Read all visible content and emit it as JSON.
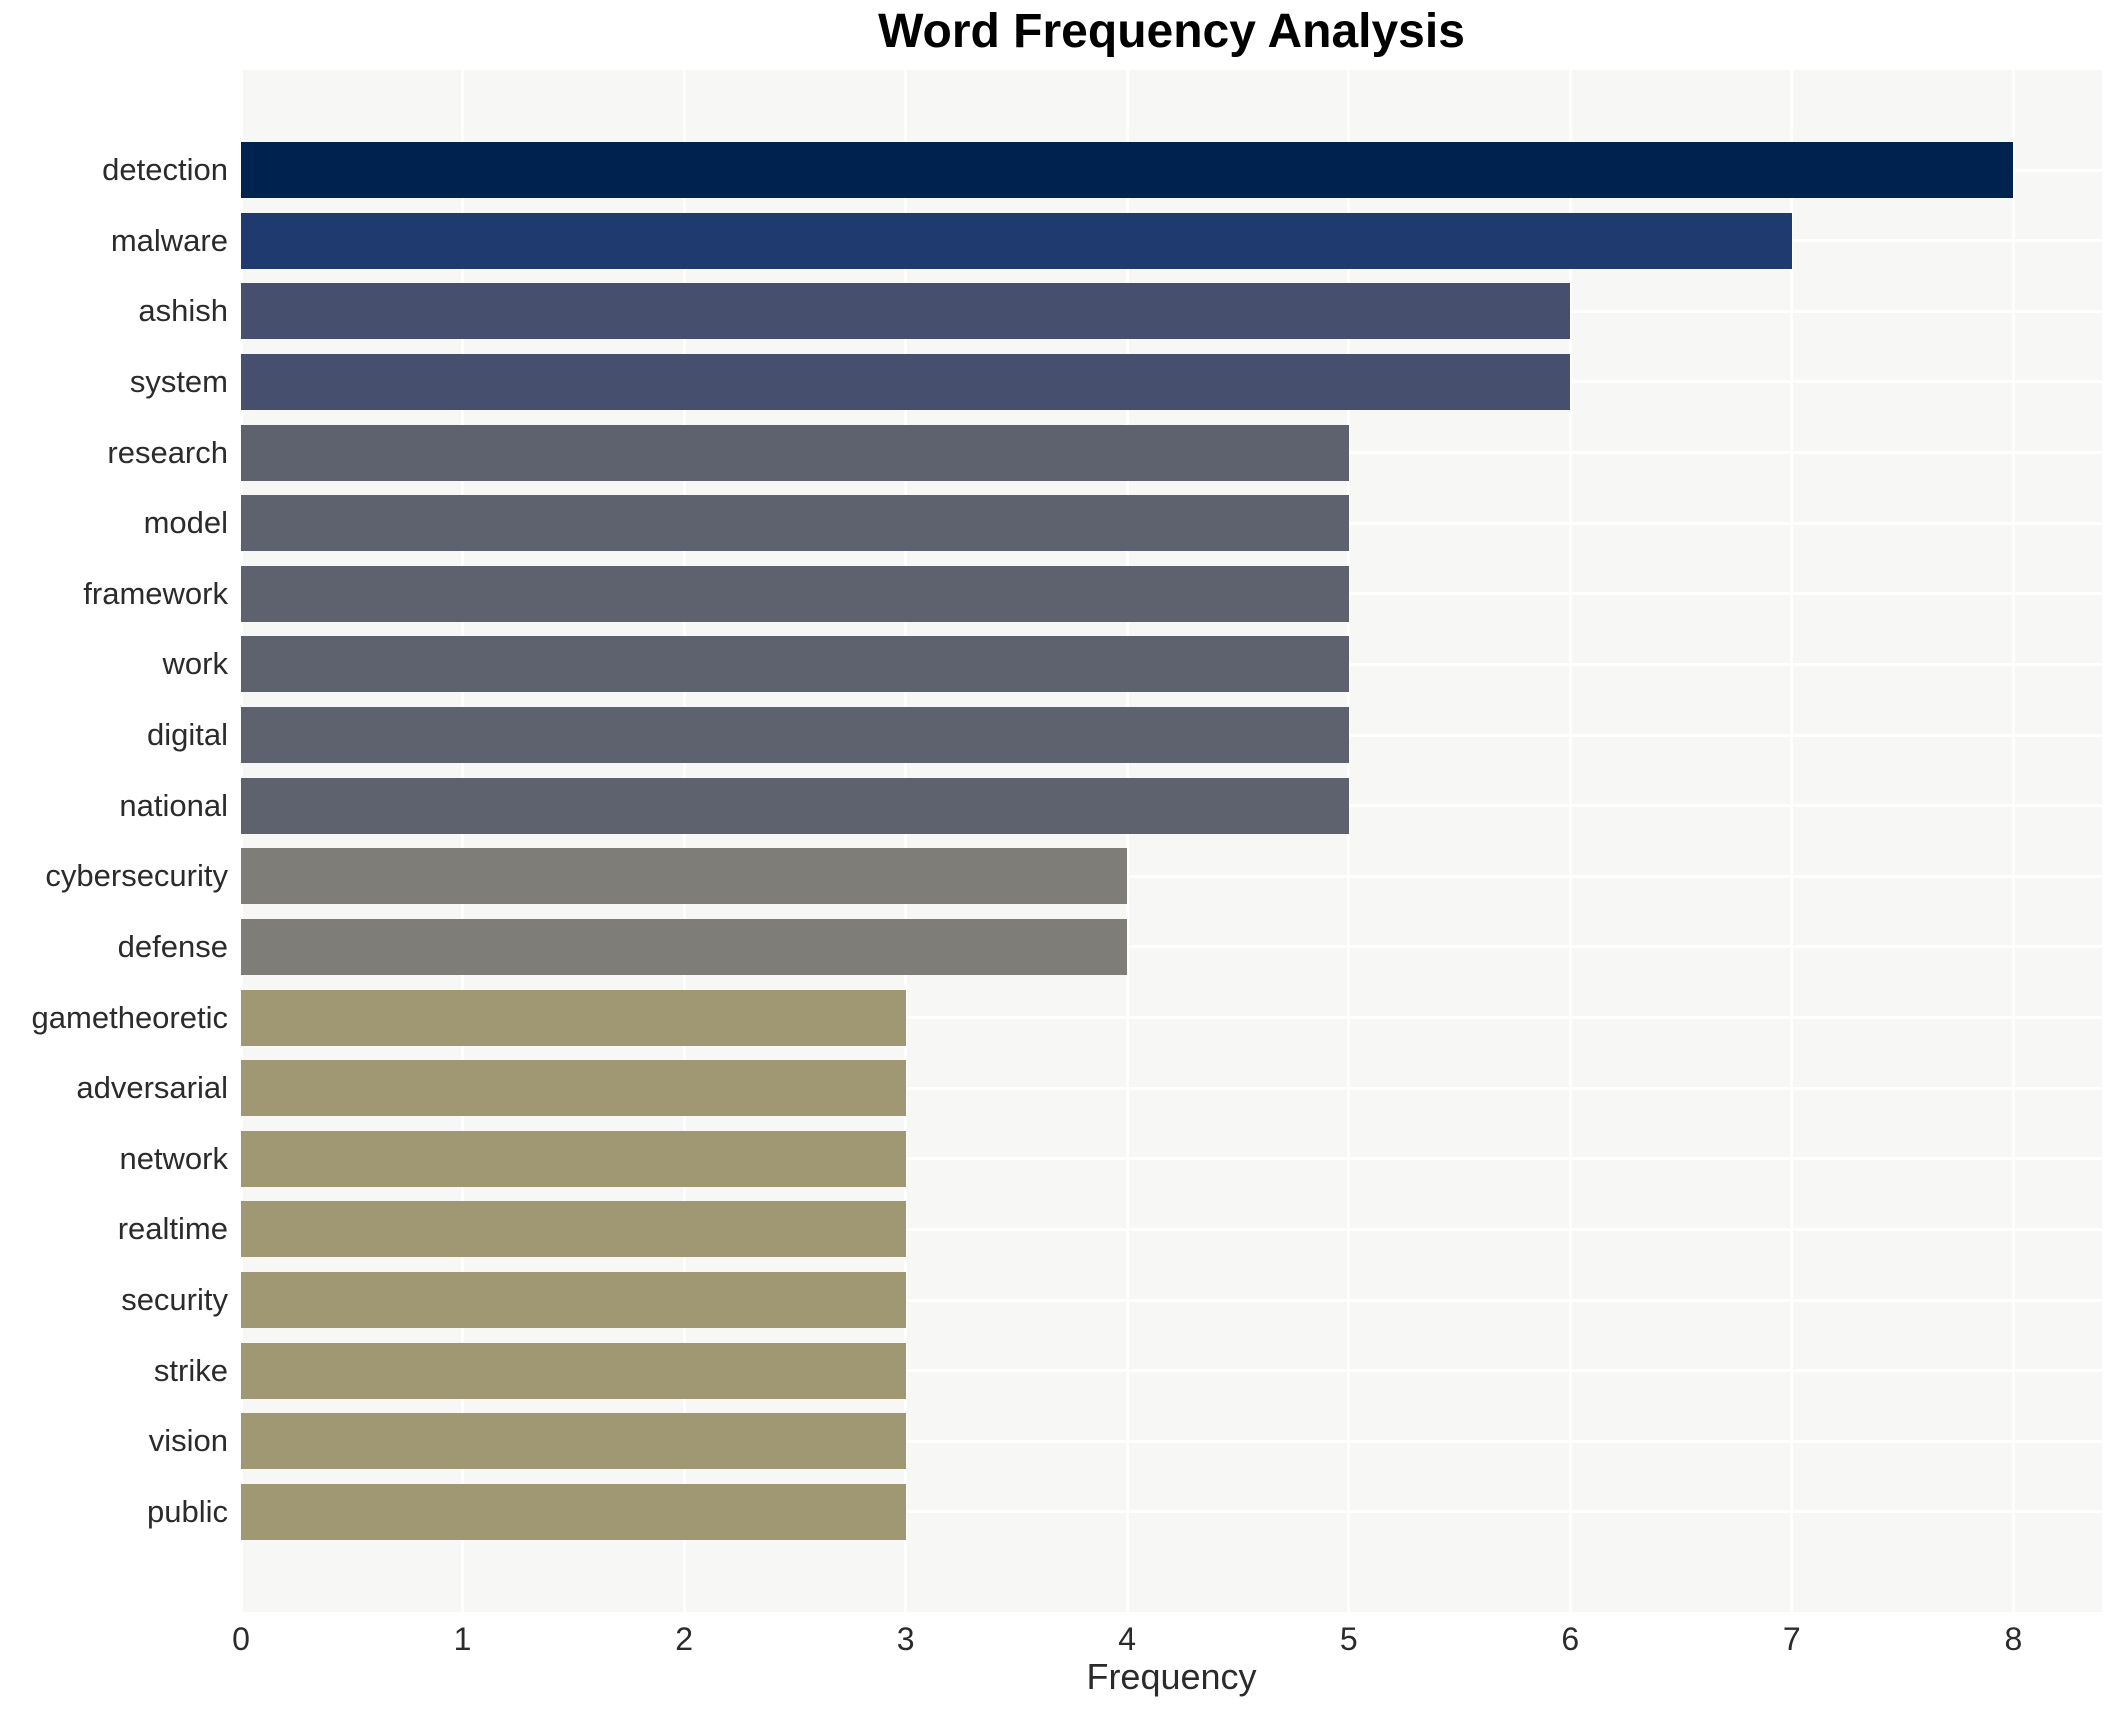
{
  "chart_data": {
    "type": "bar",
    "orientation": "horizontal",
    "title": "Word Frequency Analysis",
    "xlabel": "Frequency",
    "ylabel": "",
    "categories": [
      "detection",
      "malware",
      "ashish",
      "system",
      "research",
      "model",
      "framework",
      "work",
      "digital",
      "national",
      "cybersecurity",
      "defense",
      "gametheoretic",
      "adversarial",
      "network",
      "realtime",
      "security",
      "strike",
      "vision",
      "public"
    ],
    "values": [
      8,
      7,
      6,
      6,
      5,
      5,
      5,
      5,
      5,
      5,
      4,
      4,
      3,
      3,
      3,
      3,
      3,
      3,
      3,
      3
    ],
    "xticks": [
      0,
      1,
      2,
      3,
      4,
      5,
      6,
      7,
      8
    ],
    "xlim": [
      0,
      8.4
    ],
    "grid": true,
    "legend": "none",
    "colors": {
      "plot_background": "#f7f7f6",
      "gridline": "#ffffff",
      "text": "#2b2b2b",
      "title_text": "#000000",
      "value_8": "#00224e",
      "value_7": "#1e3a6e",
      "value_6": "#46506e",
      "value_5": "#5e626e",
      "value_4": "#7e7d78",
      "value_3": "#a09873"
    }
  }
}
